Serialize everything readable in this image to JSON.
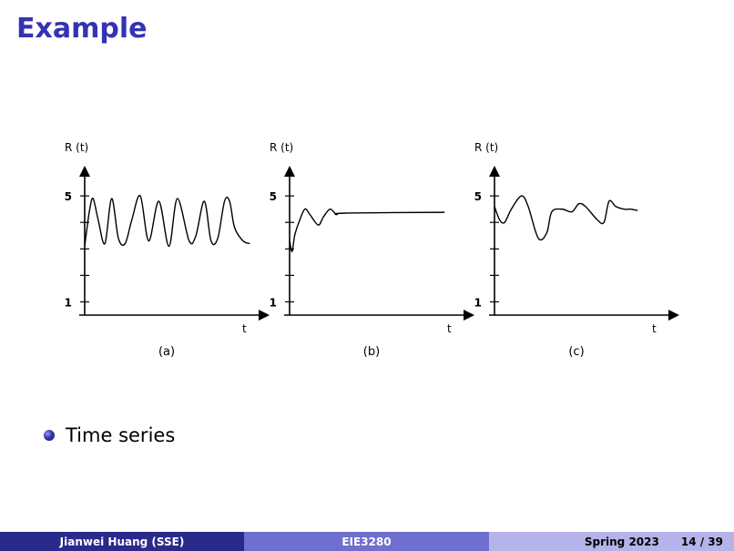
{
  "slide": {
    "title": "Example"
  },
  "chart_data": [
    {
      "type": "line",
      "caption": "(a)",
      "ylabel": "R (t)",
      "xlabel": "t",
      "ytick_labels": [
        "1",
        "5"
      ],
      "ylim": [
        0.5,
        6
      ],
      "xlim": [
        0,
        10
      ],
      "x": [
        0.0,
        0.1,
        0.3,
        0.5,
        0.8,
        1.2,
        1.6,
        2.0,
        2.4,
        2.8,
        3.3,
        3.8,
        4.4,
        5.0,
        5.5,
        6.2,
        6.6,
        7.1,
        7.5,
        7.9,
        8.3,
        8.6,
        8.9,
        9.4,
        9.8
      ],
      "y": [
        3.1,
        3.6,
        4.5,
        4.9,
        4.1,
        3.2,
        4.9,
        3.4,
        3.2,
        4.1,
        5.0,
        3.3,
        4.8,
        3.1,
        4.9,
        3.3,
        3.5,
        4.8,
        3.3,
        3.4,
        4.8,
        4.8,
        3.8,
        3.3,
        3.2
      ]
    },
    {
      "type": "line",
      "caption": "(b)",
      "ylabel": "R (t)",
      "xlabel": "t",
      "ytick_labels": [
        "1",
        "5"
      ],
      "ylim": [
        0.5,
        6
      ],
      "xlim": [
        0,
        10
      ],
      "x": [
        0.0,
        0.15,
        0.3,
        0.55,
        0.9,
        1.2,
        1.7,
        2.0,
        2.4,
        2.8,
        3.3,
        9.2
      ],
      "y": [
        3.3,
        2.9,
        3.5,
        4.0,
        4.5,
        4.3,
        3.9,
        4.2,
        4.5,
        4.3,
        4.35,
        4.38
      ]
    },
    {
      "type": "line",
      "caption": "(c)",
      "ylabel": "R (t)",
      "xlabel": "t",
      "ytick_labels": [
        "1",
        "5"
      ],
      "ylim": [
        0.5,
        6
      ],
      "xlim": [
        0,
        10
      ],
      "x": [
        0.0,
        0.3,
        0.6,
        1.0,
        1.6,
        2.0,
        2.6,
        3.1,
        3.4,
        4.0,
        4.6,
        5.0,
        5.4,
        6.1,
        6.5,
        6.8,
        7.2,
        7.7,
        8.1,
        8.5
      ],
      "y": [
        4.6,
        4.1,
        4.0,
        4.5,
        5.0,
        4.6,
        3.4,
        3.6,
        4.4,
        4.5,
        4.4,
        4.7,
        4.6,
        4.1,
        4.0,
        4.8,
        4.6,
        4.5,
        4.5,
        4.45
      ]
    }
  ],
  "bullets": [
    "Time series"
  ],
  "footer": {
    "author": "Jianwei Huang (SSE)",
    "course": "EIE3280",
    "term": "Spring 2023",
    "page": "14 / 39"
  }
}
